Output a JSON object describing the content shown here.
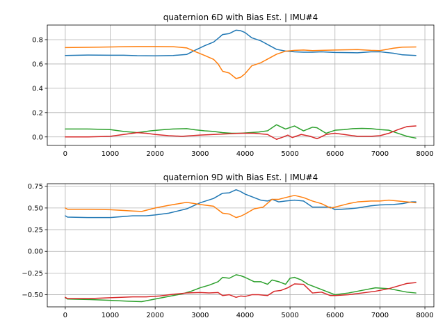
{
  "chart_data": [
    {
      "type": "line",
      "title": "quaternion 6D with Bias Est. | IMU#4",
      "xlabel": "",
      "ylabel": "",
      "xlim": [
        -400,
        8200
      ],
      "ylim": [
        -0.07,
        0.92
      ],
      "xticks": [
        0,
        1000,
        2000,
        3000,
        4000,
        5000,
        6000,
        7000,
        8000
      ],
      "xtick_labels": [
        "0",
        "1000",
        "2000",
        "3000",
        "4000",
        "5000",
        "6000",
        "7000",
        "8000"
      ],
      "yticks": [
        0.0,
        0.2,
        0.4,
        0.6,
        0.8
      ],
      "ytick_labels": [
        "0.0",
        "0.2",
        "0.4",
        "0.6",
        "0.8"
      ],
      "grid": true,
      "legend": "none",
      "series": [
        {
          "color": "#1f77b4",
          "x": [
            0,
            500,
            1000,
            1300,
            1600,
            2000,
            2400,
            2700,
            2900,
            3100,
            3300,
            3400,
            3500,
            3650,
            3800,
            3900,
            4000,
            4150,
            4350,
            4500,
            4700,
            4900,
            5100,
            5300,
            5500,
            5700,
            6000,
            6500,
            6800,
            7000,
            7300,
            7500,
            7800
          ],
          "y": [
            0.67,
            0.673,
            0.672,
            0.672,
            0.668,
            0.667,
            0.67,
            0.678,
            0.715,
            0.75,
            0.78,
            0.81,
            0.842,
            0.85,
            0.878,
            0.874,
            0.858,
            0.815,
            0.79,
            0.76,
            0.72,
            0.706,
            0.7,
            0.697,
            0.697,
            0.7,
            0.695,
            0.692,
            0.7,
            0.7,
            0.688,
            0.675,
            0.67
          ]
        },
        {
          "color": "#ff7f0e",
          "x": [
            0,
            500,
            1000,
            1300,
            1600,
            2000,
            2400,
            2700,
            2900,
            3100,
            3300,
            3400,
            3500,
            3650,
            3800,
            3900,
            4000,
            4150,
            4350,
            4500,
            4700,
            4900,
            5100,
            5300,
            5500,
            5700,
            6000,
            6500,
            6800,
            7000,
            7300,
            7500,
            7800
          ],
          "y": [
            0.735,
            0.737,
            0.74,
            0.742,
            0.743,
            0.743,
            0.742,
            0.732,
            0.7,
            0.67,
            0.638,
            0.6,
            0.54,
            0.525,
            0.48,
            0.49,
            0.52,
            0.585,
            0.61,
            0.64,
            0.68,
            0.705,
            0.712,
            0.715,
            0.71,
            0.712,
            0.715,
            0.718,
            0.712,
            0.71,
            0.73,
            0.738,
            0.74
          ]
        },
        {
          "color": "#2ca02c",
          "x": [
            0,
            500,
            1000,
            1300,
            1600,
            1900,
            2200,
            2400,
            2700,
            2900,
            3100,
            3300,
            3500,
            3700,
            3900,
            4100,
            4300,
            4500,
            4700,
            4900,
            5100,
            5300,
            5500,
            5600,
            5800,
            6000,
            6200,
            6400,
            6600,
            6800,
            7000,
            7200,
            7400,
            7600,
            7800
          ],
          "y": [
            0.065,
            0.065,
            0.06,
            0.045,
            0.035,
            0.05,
            0.06,
            0.065,
            0.068,
            0.058,
            0.05,
            0.045,
            0.035,
            0.03,
            0.03,
            0.035,
            0.04,
            0.05,
            0.1,
            0.065,
            0.09,
            0.05,
            0.08,
            0.075,
            0.03,
            0.055,
            0.06,
            0.068,
            0.07,
            0.068,
            0.06,
            0.055,
            0.03,
            0.005,
            -0.01
          ]
        },
        {
          "color": "#d62728",
          "x": [
            0,
            500,
            1000,
            1300,
            1600,
            1800,
            2000,
            2300,
            2600,
            2800,
            3000,
            3300,
            3600,
            3900,
            4200,
            4500,
            4700,
            4850,
            4950,
            5050,
            5250,
            5450,
            5600,
            5800,
            6000,
            6200,
            6500,
            6800,
            7000,
            7200,
            7400,
            7600,
            7800
          ],
          "y": [
            0.0,
            0.0,
            0.005,
            0.02,
            0.035,
            0.03,
            0.02,
            0.01,
            0.005,
            0.01,
            0.015,
            0.02,
            0.025,
            0.03,
            0.03,
            0.02,
            -0.02,
            0.0,
            0.015,
            -0.005,
            0.02,
            0.005,
            -0.015,
            0.02,
            0.03,
            0.02,
            0.005,
            0.005,
            0.01,
            0.03,
            0.06,
            0.085,
            0.09
          ]
        }
      ]
    },
    {
      "type": "line",
      "title": "quaternion 9D with Bias Est.  | IMU#4",
      "xlabel": "",
      "ylabel": "",
      "xlim": [
        -400,
        8200
      ],
      "ylim": [
        -0.64,
        0.78
      ],
      "xticks": [
        0,
        1000,
        2000,
        3000,
        4000,
        5000,
        6000,
        7000,
        8000
      ],
      "xtick_labels": [
        "0",
        "1000",
        "2000",
        "3000",
        "4000",
        "5000",
        "6000",
        "7000",
        "8000"
      ],
      "yticks": [
        -0.5,
        -0.25,
        0.0,
        0.25,
        0.5,
        0.75
      ],
      "ytick_labels": [
        "−0.50",
        "−0.25",
        "0.00",
        "0.25",
        "0.50",
        "0.75"
      ],
      "grid": true,
      "legend": "none",
      "series": [
        {
          "color": "#1f77b4",
          "x": [
            0,
            50,
            500,
            1000,
            1500,
            1800,
            2000,
            2300,
            2700,
            3000,
            3300,
            3500,
            3650,
            3800,
            3900,
            4000,
            4200,
            4350,
            4500,
            4600,
            4750,
            4900,
            5100,
            5300,
            5500,
            5700,
            5900,
            6000,
            6300,
            6500,
            6800,
            7000,
            7300,
            7500,
            7700,
            7800
          ],
          "y": [
            0.41,
            0.395,
            0.39,
            0.39,
            0.41,
            0.41,
            0.42,
            0.44,
            0.49,
            0.56,
            0.61,
            0.67,
            0.675,
            0.71,
            0.69,
            0.66,
            0.62,
            0.59,
            0.58,
            0.6,
            0.57,
            0.58,
            0.59,
            0.58,
            0.51,
            0.51,
            0.51,
            0.48,
            0.49,
            0.5,
            0.525,
            0.535,
            0.54,
            0.55,
            0.57,
            0.57
          ]
        },
        {
          "color": "#ff7f0e",
          "x": [
            0,
            50,
            500,
            1000,
            1500,
            1700,
            2000,
            2300,
            2700,
            3000,
            3300,
            3500,
            3650,
            3800,
            3900,
            4000,
            4200,
            4400,
            4600,
            4750,
            4900,
            5100,
            5300,
            5500,
            5700,
            5900,
            6000,
            6300,
            6500,
            6800,
            7000,
            7200,
            7400,
            7600,
            7800
          ],
          "y": [
            0.5,
            0.485,
            0.485,
            0.48,
            0.465,
            0.46,
            0.5,
            0.53,
            0.565,
            0.54,
            0.52,
            0.44,
            0.43,
            0.39,
            0.405,
            0.43,
            0.49,
            0.51,
            0.6,
            0.6,
            0.62,
            0.645,
            0.62,
            0.58,
            0.55,
            0.5,
            0.51,
            0.55,
            0.57,
            0.58,
            0.58,
            0.59,
            0.58,
            0.57,
            0.56
          ]
        },
        {
          "color": "#2ca02c",
          "x": [
            0,
            50,
            500,
            1000,
            1400,
            1700,
            2000,
            2300,
            2600,
            2800,
            3000,
            3200,
            3400,
            3500,
            3650,
            3800,
            3900,
            4000,
            4200,
            4350,
            4500,
            4600,
            4750,
            4900,
            5000,
            5100,
            5250,
            5400,
            5600,
            5800,
            6000,
            6300,
            6600,
            6900,
            7200,
            7400,
            7600,
            7800
          ],
          "y": [
            -0.535,
            -0.55,
            -0.555,
            -0.565,
            -0.575,
            -0.58,
            -0.55,
            -0.52,
            -0.49,
            -0.46,
            -0.42,
            -0.39,
            -0.35,
            -0.3,
            -0.31,
            -0.27,
            -0.28,
            -0.3,
            -0.35,
            -0.35,
            -0.38,
            -0.33,
            -0.35,
            -0.38,
            -0.31,
            -0.3,
            -0.33,
            -0.38,
            -0.42,
            -0.46,
            -0.5,
            -0.48,
            -0.45,
            -0.42,
            -0.43,
            -0.45,
            -0.47,
            -0.48
          ]
        },
        {
          "color": "#d62728",
          "x": [
            0,
            50,
            500,
            1000,
            1500,
            1800,
            2100,
            2400,
            2700,
            3000,
            3200,
            3400,
            3500,
            3650,
            3800,
            3900,
            4000,
            4150,
            4300,
            4500,
            4650,
            4800,
            4950,
            5100,
            5300,
            5500,
            5700,
            5900,
            6000,
            6300,
            6600,
            6900,
            7200,
            7400,
            7600,
            7800
          ],
          "y": [
            -0.53,
            -0.545,
            -0.545,
            -0.535,
            -0.525,
            -0.525,
            -0.515,
            -0.495,
            -0.48,
            -0.475,
            -0.48,
            -0.475,
            -0.51,
            -0.5,
            -0.53,
            -0.515,
            -0.52,
            -0.5,
            -0.5,
            -0.51,
            -0.46,
            -0.45,
            -0.42,
            -0.375,
            -0.38,
            -0.48,
            -0.47,
            -0.51,
            -0.51,
            -0.5,
            -0.48,
            -0.46,
            -0.43,
            -0.4,
            -0.37,
            -0.36
          ]
        }
      ]
    }
  ]
}
